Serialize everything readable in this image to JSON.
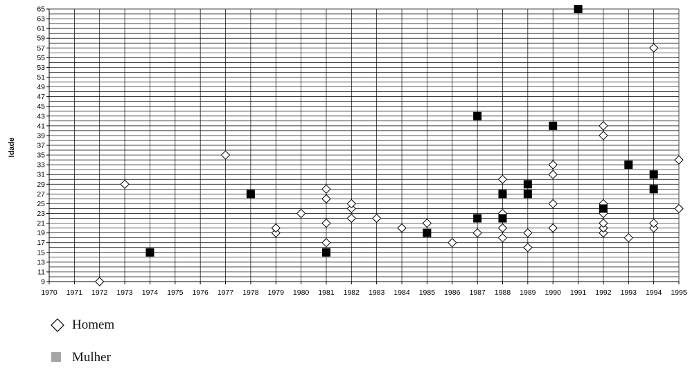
{
  "chart_data": {
    "type": "scatter",
    "ylabel": "Idade",
    "xlabel": "",
    "xlim": [
      1970,
      1995
    ],
    "ylim": [
      9,
      65
    ],
    "x_ticks": [
      1970,
      1971,
      1972,
      1973,
      1974,
      1975,
      1976,
      1977,
      1978,
      1979,
      1980,
      1981,
      1982,
      1983,
      1984,
      1985,
      1986,
      1987,
      1988,
      1989,
      1990,
      1991,
      1992,
      1993,
      1994,
      1995
    ],
    "y_ticks": [
      9,
      11,
      13,
      15,
      17,
      19,
      21,
      23,
      25,
      27,
      29,
      31,
      33,
      35,
      37,
      39,
      41,
      43,
      45,
      47,
      49,
      51,
      53,
      55,
      57,
      59,
      61,
      63,
      65
    ],
    "grid": true,
    "legend_position": "bottom-left",
    "series": [
      {
        "name": "Homem",
        "marker": "diamond-open",
        "color": "#000000",
        "points": [
          [
            1972,
            9
          ],
          [
            1973,
            29
          ],
          [
            1977,
            35
          ],
          [
            1979,
            19
          ],
          [
            1979,
            20
          ],
          [
            1980,
            23
          ],
          [
            1981,
            17
          ],
          [
            1981,
            21
          ],
          [
            1981,
            26
          ],
          [
            1981,
            28
          ],
          [
            1982,
            22
          ],
          [
            1982,
            24
          ],
          [
            1982,
            25
          ],
          [
            1983,
            22
          ],
          [
            1984,
            20
          ],
          [
            1985,
            21
          ],
          [
            1986,
            17
          ],
          [
            1987,
            19
          ],
          [
            1988,
            18
          ],
          [
            1988,
            20
          ],
          [
            1988,
            23
          ],
          [
            1988,
            30
          ],
          [
            1989,
            16
          ],
          [
            1989,
            19
          ],
          [
            1990,
            20
          ],
          [
            1990,
            25
          ],
          [
            1990,
            31
          ],
          [
            1990,
            33
          ],
          [
            1992,
            19
          ],
          [
            1992,
            20
          ],
          [
            1992,
            21
          ],
          [
            1992,
            23
          ],
          [
            1992,
            25
          ],
          [
            1992,
            39
          ],
          [
            1992,
            41
          ],
          [
            1993,
            18
          ],
          [
            1994,
            20
          ],
          [
            1994,
            21
          ],
          [
            1994,
            57
          ],
          [
            1995,
            24
          ],
          [
            1995,
            34
          ]
        ]
      },
      {
        "name": "Mulher",
        "marker": "square-filled",
        "color": "#000000",
        "legend_color": "#a6a6a6",
        "points": [
          [
            1974,
            15
          ],
          [
            1978,
            27
          ],
          [
            1981,
            15
          ],
          [
            1985,
            19
          ],
          [
            1987,
            22
          ],
          [
            1987,
            43
          ],
          [
            1988,
            22
          ],
          [
            1988,
            27
          ],
          [
            1989,
            27
          ],
          [
            1989,
            29
          ],
          [
            1990,
            41
          ],
          [
            1991,
            65
          ],
          [
            1992,
            24
          ],
          [
            1993,
            33
          ],
          [
            1994,
            28
          ],
          [
            1994,
            31
          ]
        ]
      }
    ]
  },
  "legend": {
    "homem_label": "Homem",
    "mulher_label": "Mulher"
  }
}
